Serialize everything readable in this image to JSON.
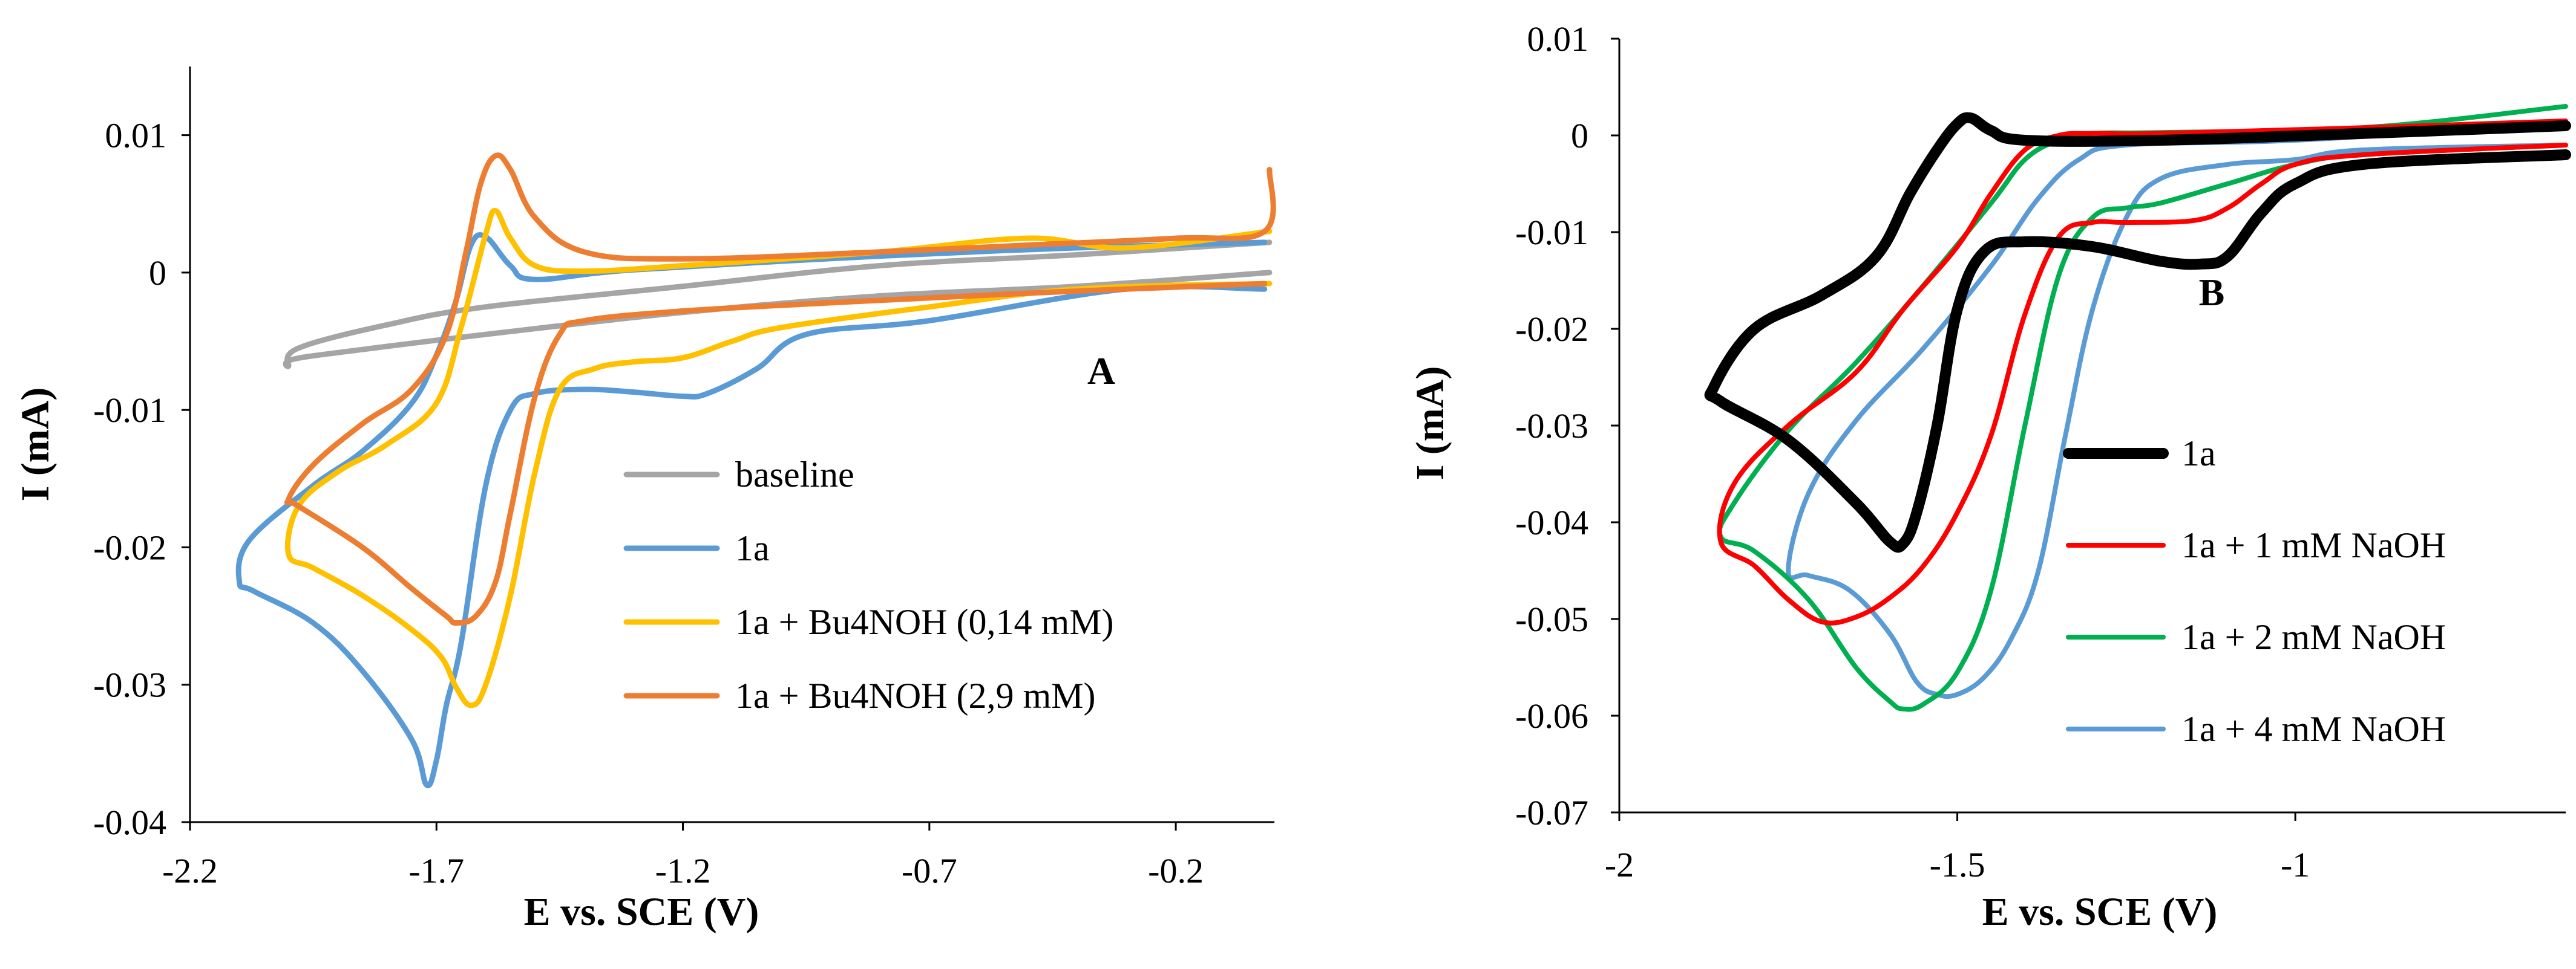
{
  "chart_data": [
    {
      "type": "line",
      "panel_label": "A",
      "xlabel": "E vs. SCE (V)",
      "ylabel": "I (mA)",
      "xlim": [
        -2.2,
        0.0
      ],
      "ylim": [
        -0.04,
        0.015
      ],
      "xticks": [
        -2.2,
        -1.7,
        -1.2,
        -0.7,
        -0.2
      ],
      "xtick_labels": [
        "-2.2",
        "-1.7",
        "-1.2",
        "-0.7",
        "-0.2"
      ],
      "yticks": [
        0.01,
        0,
        -0.01,
        -0.02,
        -0.03,
        -0.04
      ],
      "ytick_labels": [
        "0.01",
        "0",
        "-0.01",
        "-0.02",
        "-0.03",
        "-0.04"
      ],
      "legend_position": "center-right",
      "series": [
        {
          "name": "baseline",
          "color": "#A5A5A5",
          "x": [
            -0.01,
            -0.4,
            -0.8,
            -1.2,
            -1.6,
            -1.85,
            -1.99,
            -2.0,
            -1.98,
            -1.8,
            -1.6,
            -1.2,
            -0.8,
            -0.4,
            -0.01
          ],
          "y": [
            0.0,
            -0.001,
            -0.0017,
            -0.0029,
            -0.0045,
            -0.0056,
            -0.0063,
            -0.0068,
            -0.0055,
            -0.0038,
            -0.0025,
            -0.001,
            0.0005,
            0.0013,
            0.0022
          ]
        },
        {
          "name": "1a",
          "color": "#5B9BD5",
          "x": [
            -0.02,
            -0.3,
            -0.7,
            -0.95,
            -1.05,
            -1.15,
            -1.2,
            -1.3,
            -1.4,
            -1.5,
            -1.55,
            -1.6,
            -1.65,
            -1.68,
            -1.7,
            -1.72,
            -1.75,
            -1.85,
            -1.95,
            -2.07,
            -2.1,
            -2.08,
            -1.95,
            -1.85,
            -1.75,
            -1.7,
            -1.66,
            -1.63,
            -1.6,
            -1.55,
            -1.5,
            -1.3,
            -0.8,
            -0.4,
            -0.02
          ],
          "y": [
            -0.0012,
            -0.0012,
            -0.0035,
            -0.0045,
            -0.007,
            -0.0088,
            -0.009,
            -0.0087,
            -0.0085,
            -0.0088,
            -0.01,
            -0.0155,
            -0.027,
            -0.0315,
            -0.0355,
            -0.0373,
            -0.034,
            -0.029,
            -0.0255,
            -0.0232,
            -0.0225,
            -0.0195,
            -0.0155,
            -0.013,
            -0.0095,
            -0.006,
            -0.002,
            0.002,
            0.0026,
            0.0005,
            -0.0005,
            0.0002,
            0.0012,
            0.0018,
            0.0022
          ]
        },
        {
          "name": "1a + Bu4NOH (0,14 mM)",
          "color": "#FFC000",
          "x": [
            -0.01,
            -0.4,
            -0.7,
            -1.0,
            -1.1,
            -1.2,
            -1.3,
            -1.38,
            -1.45,
            -1.5,
            -1.55,
            -1.6,
            -1.63,
            -1.66,
            -1.69,
            -1.75,
            -1.85,
            -1.95,
            -2.0,
            -1.98,
            -1.9,
            -1.8,
            -1.7,
            -1.65,
            -1.6,
            -1.58,
            -1.55,
            -1.5,
            -1.4,
            -1.2,
            -0.8,
            -0.5,
            -0.3,
            -0.01
          ],
          "y": [
            -0.0008,
            -0.0012,
            -0.0025,
            -0.004,
            -0.005,
            -0.0062,
            -0.0065,
            -0.007,
            -0.0085,
            -0.0145,
            -0.0235,
            -0.03,
            -0.0315,
            -0.0302,
            -0.028,
            -0.026,
            -0.0235,
            -0.0215,
            -0.0205,
            -0.017,
            -0.0145,
            -0.0125,
            -0.0095,
            -0.004,
            0.0028,
            0.0045,
            0.0025,
            0.0005,
            0.0001,
            0.0005,
            0.0015,
            0.0025,
            0.0018,
            0.003
          ]
        },
        {
          "name": "1a + Bu4NOH (2,9 mM)",
          "color": "#ED7D31",
          "x": [
            -0.02,
            -0.5,
            -0.9,
            -1.2,
            -1.4,
            -1.45,
            -1.5,
            -1.55,
            -1.58,
            -1.62,
            -1.66,
            -1.68,
            -1.75,
            -1.85,
            -1.98,
            -2.0,
            -1.95,
            -1.85,
            -1.75,
            -1.68,
            -1.64,
            -1.61,
            -1.58,
            -1.55,
            -1.5,
            -1.4,
            -1.2,
            -0.8,
            -0.5,
            -0.2,
            -0.02,
            -0.01
          ],
          "y": [
            -0.0008,
            -0.0015,
            -0.0022,
            -0.0028,
            -0.0035,
            -0.0045,
            -0.009,
            -0.0175,
            -0.0225,
            -0.025,
            -0.0255,
            -0.025,
            -0.023,
            -0.02,
            -0.017,
            -0.0165,
            -0.014,
            -0.011,
            -0.0085,
            -0.0045,
            0.0015,
            0.0065,
            0.0085,
            0.0075,
            0.004,
            0.0015,
            0.001,
            0.0015,
            0.002,
            0.0025,
            0.003,
            0.0075
          ]
        }
      ]
    },
    {
      "type": "line",
      "panel_label": "B",
      "xlabel": "E vs. SCE (V)",
      "ylabel": "I (mA)",
      "xlim": [
        -2.0,
        -0.6
      ],
      "ylim": [
        -0.07,
        0.01
      ],
      "xticks": [
        -2.0,
        -1.5,
        -1.0
      ],
      "xtick_labels": [
        "-2",
        "-1.5",
        "-1"
      ],
      "yticks": [
        0.01,
        0,
        -0.01,
        -0.02,
        -0.03,
        -0.04,
        -0.05,
        -0.06,
        -0.07
      ],
      "ytick_labels": [
        "0.01",
        "0",
        "-0.01",
        "-0.02",
        "-0.03",
        "-0.04",
        "-0.05",
        "-0.06",
        "-0.07"
      ],
      "legend_position": "bottom-right",
      "series": [
        {
          "name": "1a",
          "color": "#000000",
          "x": [
            -0.6,
            -0.9,
            -1.0,
            -1.05,
            -1.1,
            -1.14,
            -1.2,
            -1.3,
            -1.4,
            -1.46,
            -1.5,
            -1.53,
            -1.56,
            -1.58,
            -1.6,
            -1.65,
            -1.75,
            -1.85,
            -1.86,
            -1.8,
            -1.7,
            -1.62,
            -1.57,
            -1.53,
            -1.5,
            -1.48,
            -1.45,
            -1.4,
            -1.2,
            -0.9,
            -0.6
          ],
          "y": [
            -0.002,
            -0.003,
            -0.005,
            -0.008,
            -0.0125,
            -0.0133,
            -0.013,
            -0.0115,
            -0.011,
            -0.012,
            -0.018,
            -0.03,
            -0.039,
            -0.0422,
            -0.042,
            -0.038,
            -0.0315,
            -0.0275,
            -0.026,
            -0.02,
            -0.0165,
            -0.0125,
            -0.006,
            -0.0015,
            0.0012,
            0.0018,
            0.0005,
            -0.0005,
            -0.0005,
            0.0002,
            0.001
          ]
        },
        {
          "name": "1a + 1 mM NaOH",
          "color": "#FF0000",
          "x": [
            -0.6,
            -0.9,
            -1.0,
            -1.05,
            -1.1,
            -1.15,
            -1.25,
            -1.3,
            -1.35,
            -1.4,
            -1.45,
            -1.5,
            -1.55,
            -1.6,
            -1.65,
            -1.7,
            -1.75,
            -1.8,
            -1.85,
            -1.83,
            -1.75,
            -1.65,
            -1.58,
            -1.5,
            -1.45,
            -1.4,
            -1.35,
            -1.3,
            -1.2,
            -0.9,
            -0.6
          ],
          "y": [
            -0.001,
            -0.002,
            -0.003,
            -0.005,
            -0.0075,
            -0.0088,
            -0.009,
            -0.009,
            -0.0105,
            -0.0185,
            -0.031,
            -0.039,
            -0.0445,
            -0.0478,
            -0.0498,
            -0.0503,
            -0.048,
            -0.0445,
            -0.042,
            -0.036,
            -0.03,
            -0.0245,
            -0.018,
            -0.0115,
            -0.006,
            -0.0015,
            0.0,
            0.0002,
            0.0002,
            0.0008,
            0.0015
          ]
        },
        {
          "name": "1a + 2 mM NaOH",
          "color": "#00B050",
          "x": [
            -0.6,
            -0.9,
            -1.0,
            -1.1,
            -1.2,
            -1.25,
            -1.3,
            -1.35,
            -1.4,
            -1.45,
            -1.5,
            -1.55,
            -1.58,
            -1.6,
            -1.65,
            -1.72,
            -1.8,
            -1.85,
            -1.83,
            -1.75,
            -1.65,
            -1.55,
            -1.45,
            -1.4,
            -1.35,
            -1.3,
            -1.2,
            -0.9,
            -0.6
          ],
          "y": [
            -0.001,
            -0.002,
            -0.003,
            -0.005,
            -0.007,
            -0.0075,
            -0.0085,
            -0.0145,
            -0.03,
            -0.047,
            -0.0555,
            -0.0588,
            -0.0593,
            -0.0585,
            -0.055,
            -0.048,
            -0.043,
            -0.0415,
            -0.038,
            -0.0305,
            -0.0235,
            -0.0155,
            -0.007,
            -0.0025,
            -0.0005,
            0.0002,
            0.0003,
            0.0008,
            0.003
          ]
        },
        {
          "name": "1a + 4 mM NaOH",
          "color": "#5B9BD5",
          "x": [
            -0.6,
            -0.9,
            -1.0,
            -1.1,
            -1.2,
            -1.25,
            -1.3,
            -1.34,
            -1.38,
            -1.42,
            -1.46,
            -1.5,
            -1.53,
            -1.56,
            -1.6,
            -1.66,
            -1.72,
            -1.75,
            -1.72,
            -1.65,
            -1.55,
            -1.45,
            -1.38,
            -1.32,
            -1.25,
            -1.0,
            -0.6
          ],
          "y": [
            -0.001,
            -0.0015,
            -0.0025,
            -0.003,
            -0.0045,
            -0.0085,
            -0.018,
            -0.031,
            -0.045,
            -0.052,
            -0.056,
            -0.0578,
            -0.0578,
            -0.0565,
            -0.0515,
            -0.047,
            -0.0455,
            -0.045,
            -0.037,
            -0.0295,
            -0.022,
            -0.0135,
            -0.0065,
            -0.0025,
            -0.001,
            -0.0005,
            0.0012
          ]
        }
      ]
    }
  ]
}
